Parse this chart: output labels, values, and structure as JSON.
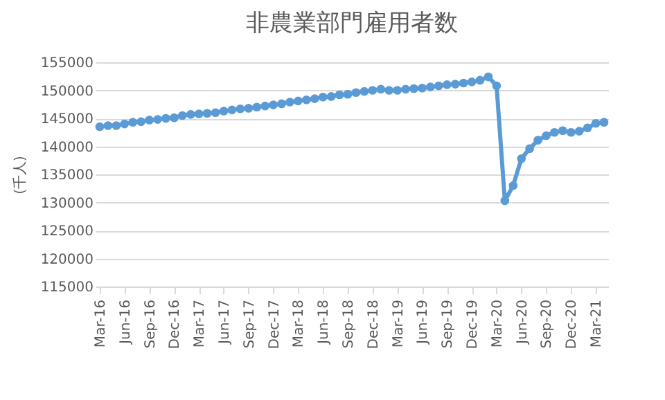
{
  "chart_data": {
    "type": "line",
    "title": "非農業部門雇用者数",
    "ylabel": "(千人)",
    "categories": [
      "Mar-16",
      null,
      null,
      "Jun-16",
      null,
      null,
      "Sep-16",
      null,
      null,
      "Dec-16",
      null,
      null,
      "Mar-17",
      null,
      null,
      "Jun-17",
      null,
      null,
      "Sep-17",
      null,
      null,
      "Dec-17",
      null,
      null,
      "Mar-18",
      null,
      null,
      "Jun-18",
      null,
      null,
      "Sep-18",
      null,
      null,
      "Dec-18",
      null,
      null,
      "Mar-19",
      null,
      null,
      "Jun-19",
      null,
      null,
      "Sep-19",
      null,
      null,
      "Dec-19",
      null,
      null,
      "Mar-20",
      null,
      null,
      "Jun-20",
      null,
      null,
      "Sep-20",
      null,
      null,
      "Dec-20",
      null,
      null,
      "Mar-21",
      null
    ],
    "series": [
      {
        "color": "#5b9bd5",
        "values": [
          143500,
          143700,
          143700,
          144000,
          144300,
          144400,
          144700,
          144800,
          145000,
          145100,
          145500,
          145700,
          145800,
          145900,
          146000,
          146300,
          146500,
          146700,
          146800,
          147000,
          147200,
          147400,
          147600,
          147900,
          148100,
          148300,
          148500,
          148800,
          148900,
          149200,
          149300,
          149600,
          149800,
          150000,
          150200,
          150000,
          150000,
          150200,
          150300,
          150400,
          150600,
          150800,
          151000,
          151100,
          151300,
          151500,
          151800,
          152400,
          150800,
          130300,
          133000,
          137800,
          139600,
          141100,
          141900,
          142500,
          142800,
          142500,
          142700,
          143300,
          144100,
          144300
        ]
      }
    ],
    "ylim": [
      115000,
      155000
    ],
    "yticks": [
      115000,
      120000,
      125000,
      130000,
      135000,
      140000,
      145000,
      150000,
      155000
    ],
    "grid": "y",
    "marker": "circle",
    "line_style": "solid"
  }
}
